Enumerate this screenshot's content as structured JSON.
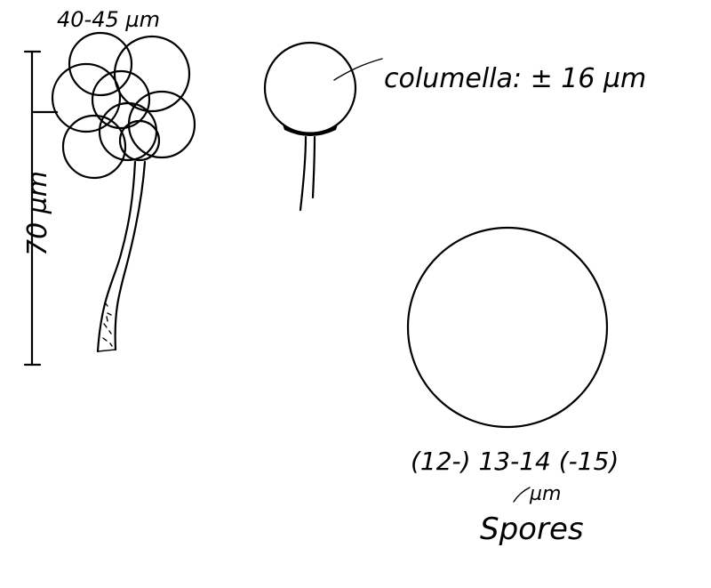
{
  "labels": {
    "sporangium_width": "40-45 µm",
    "stalk_height": "70 µm",
    "columella": "columella: ± 16 µm",
    "spore_size": "(12-) 13-14 (-15)",
    "spore_unit": "µm",
    "spores": "Spores"
  },
  "colors": {
    "ink": "#000000",
    "paper": "#ffffff"
  }
}
